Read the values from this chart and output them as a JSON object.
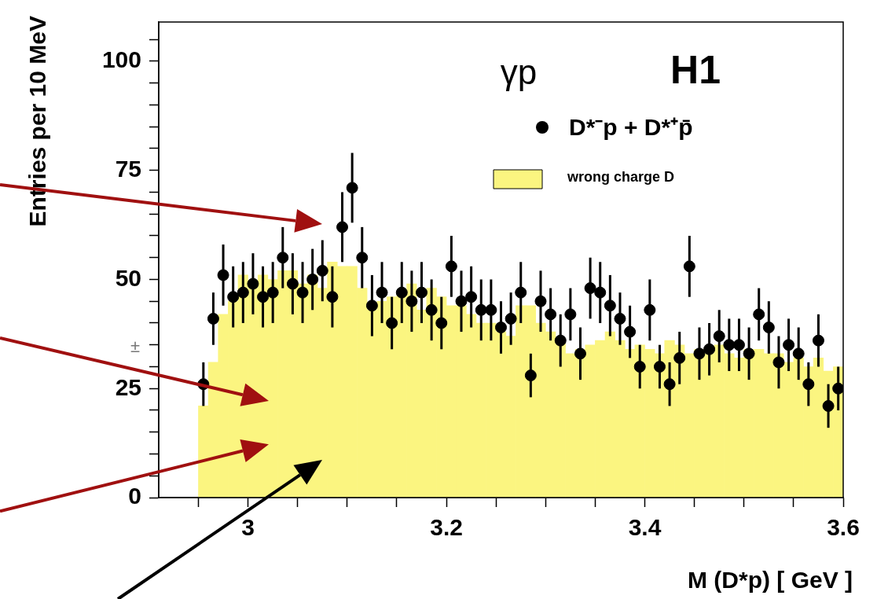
{
  "chart_data": {
    "type": "histogram",
    "xlabel": "M (D*p) [ GeV ]",
    "ylabel": "Entries per 10 MeV",
    "annotations": [
      "γp",
      "H1",
      "±"
    ],
    "legend": "top right",
    "grid": false,
    "marker": "circle",
    "xlim": [
      2.91,
      3.6
    ],
    "xticks": [
      {
        "value": 2.95,
        "label": null
      },
      3,
      {
        "value": 3.05,
        "label": null
      },
      {
        "value": 3.1,
        "label": null
      },
      {
        "value": 3.15,
        "label": null
      },
      3.2,
      {
        "value": 3.25,
        "label": null
      },
      {
        "value": 3.3,
        "label": null
      },
      {
        "value": 3.35,
        "label": null
      },
      3.4,
      {
        "value": 3.45,
        "label": null
      },
      {
        "value": 3.5,
        "label": null
      },
      {
        "value": 3.55,
        "label": null
      },
      3.6
    ],
    "ylim": [
      0,
      109
    ],
    "yticks": [
      0,
      {
        "value": 5,
        "label": null
      },
      {
        "value": 10,
        "label": null
      },
      {
        "value": 15,
        "label": null
      },
      {
        "value": 20,
        "label": null
      },
      25,
      {
        "value": 30,
        "label": null
      },
      {
        "value": 35,
        "label": null
      },
      {
        "value": 40,
        "label": null
      },
      {
        "value": 45,
        "label": null
      },
      50,
      {
        "value": 55,
        "label": null
      },
      {
        "value": 60,
        "label": null
      },
      {
        "value": 65,
        "label": null
      },
      {
        "value": 70,
        "label": null
      },
      75,
      {
        "value": 80,
        "label": null
      },
      {
        "value": 85,
        "label": null
      },
      {
        "value": 90,
        "label": null
      },
      {
        "value": 95,
        "label": null
      },
      100,
      {
        "value": 105,
        "label": null
      }
    ],
    "series": [
      {
        "type": "scatter",
        "name": "D*⁻p + D*⁺p̄",
        "color": "#000000",
        "x": [
          2.955,
          2.965,
          2.975,
          2.985,
          2.995,
          3.005,
          3.015,
          3.025,
          3.035,
          3.045,
          3.055,
          3.065,
          3.075,
          3.085,
          3.095,
          3.105,
          3.115,
          3.125,
          3.135,
          3.145,
          3.155,
          3.165,
          3.175,
          3.185,
          3.195,
          3.205,
          3.215,
          3.225,
          3.235,
          3.245,
          3.255,
          3.265,
          3.275,
          3.285,
          3.295,
          3.305,
          3.315,
          3.325,
          3.335,
          3.345,
          3.355,
          3.365,
          3.375,
          3.385,
          3.395,
          3.405,
          3.415,
          3.425,
          3.435,
          3.445,
          3.455,
          3.465,
          3.475,
          3.485,
          3.495,
          3.505,
          3.515,
          3.525,
          3.535,
          3.545,
          3.555,
          3.565,
          3.575,
          3.585,
          3.595
        ],
        "values": [
          26,
          41,
          51,
          46,
          47,
          49,
          46,
          47,
          55,
          49,
          47,
          50,
          52,
          46,
          62,
          71,
          55,
          44,
          47,
          40,
          47,
          45,
          47,
          43,
          40,
          53,
          45,
          46,
          43,
          43,
          39,
          41,
          47,
          28,
          45,
          42,
          36,
          42,
          33,
          48,
          47,
          44,
          41,
          38,
          30,
          43,
          30,
          26,
          32,
          53,
          33,
          34,
          37,
          35,
          35,
          33,
          42,
          39,
          31,
          35,
          33,
          26,
          36,
          21,
          25
        ],
        "errors": [
          5,
          6,
          7,
          7,
          7,
          7,
          7,
          7,
          7,
          7,
          7,
          7,
          7,
          7,
          8,
          8,
          7,
          7,
          7,
          6,
          7,
          7,
          7,
          7,
          6,
          7,
          7,
          7,
          7,
          7,
          6,
          6,
          7,
          5,
          7,
          6,
          6,
          6,
          6,
          7,
          7,
          7,
          6,
          6,
          5,
          7,
          5,
          5,
          6,
          7,
          6,
          6,
          6,
          6,
          6,
          6,
          6,
          6,
          6,
          6,
          6,
          5,
          6,
          5,
          5
        ]
      },
      {
        "type": "histogram",
        "name": "wrong charge D",
        "color": "#fbf580",
        "bins": [
          2.95,
          2.96,
          2.97,
          2.98,
          2.99,
          3.0,
          3.01,
          3.02,
          3.03,
          3.04,
          3.05,
          3.06,
          3.07,
          3.08,
          3.09,
          3.1,
          3.11,
          3.12,
          3.13,
          3.14,
          3.15,
          3.16,
          3.17,
          3.18,
          3.19,
          3.2,
          3.21,
          3.22,
          3.23,
          3.24,
          3.25,
          3.26,
          3.27,
          3.28,
          3.29,
          3.3,
          3.31,
          3.32,
          3.33,
          3.34,
          3.35,
          3.36,
          3.37,
          3.38,
          3.39,
          3.4,
          3.41,
          3.42,
          3.43,
          3.44,
          3.45,
          3.46,
          3.47,
          3.48,
          3.49,
          3.5,
          3.51,
          3.52,
          3.53,
          3.54,
          3.55,
          3.56,
          3.57,
          3.58,
          3.59,
          3.6
        ],
        "values": [
          21,
          31,
          42,
          45,
          51,
          48,
          51,
          50,
          52,
          52,
          49,
          51,
          48,
          54,
          53,
          53,
          48,
          43,
          45,
          46,
          47,
          49,
          43,
          48,
          46,
          44,
          44,
          42,
          40,
          40,
          38,
          37,
          44,
          44,
          40,
          38,
          36,
          33,
          34,
          35,
          36,
          38,
          36,
          34,
          35,
          34,
          33,
          36,
          35,
          33,
          34,
          33,
          35,
          33,
          32,
          34,
          34,
          33,
          33,
          31,
          32,
          30,
          32,
          29,
          30
        ]
      }
    ]
  }
}
